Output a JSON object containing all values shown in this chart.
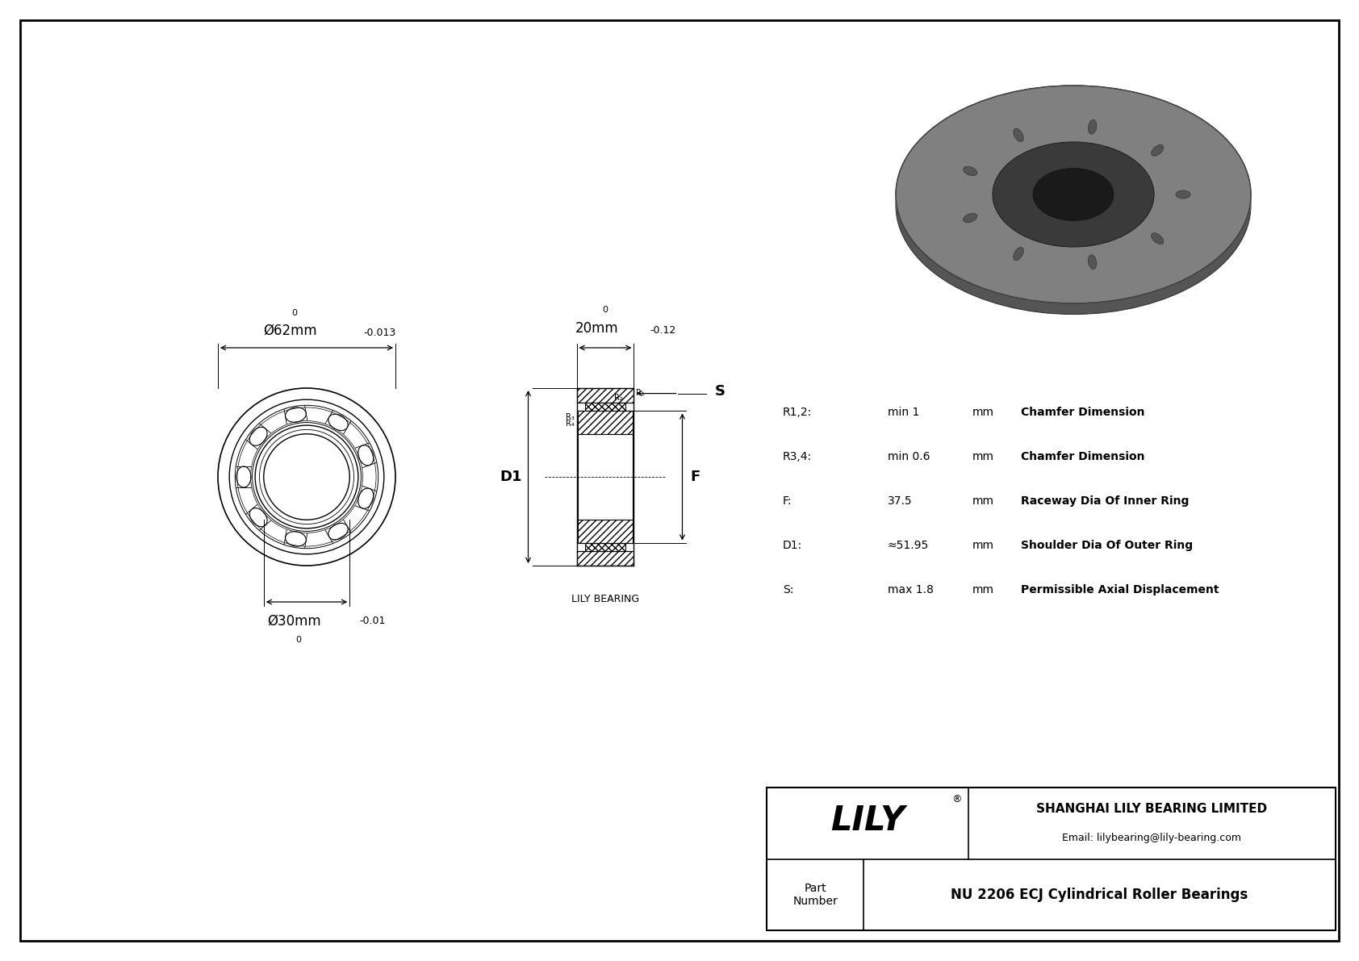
{
  "bg_color": "#ffffff",
  "line_color": "#000000",
  "outer_dia_label": "Ø62mm",
  "outer_dia_upper": "0",
  "outer_dia_lower": "-0.013",
  "inner_dia_label": "Ø30mm",
  "inner_dia_upper": "0",
  "inner_dia_lower": "-0.01",
  "width_label": "20mm",
  "width_upper": "0",
  "width_lower": "-0.12",
  "r12_label": "R1,2:",
  "r12_val": "min 1",
  "r12_unit": "mm",
  "r12_desc": "Chamfer Dimension",
  "r34_label": "R3,4:",
  "r34_val": "min 0.6",
  "r34_unit": "mm",
  "r34_desc": "Chamfer Dimension",
  "F_label": "F:",
  "F_val": "37.5",
  "F_unit": "mm",
  "F_desc": "Raceway Dia Of Inner Ring",
  "D1_label": "D1:",
  "D1_val": "≈51.95",
  "D1_unit": "mm",
  "D1_desc": "Shoulder Dia Of Outer Ring",
  "S_label": "S:",
  "S_val": "max 1.8",
  "S_unit": "mm",
  "S_desc": "Permissible Axial Displacement",
  "company": "SHANGHAI LILY BEARING LIMITED",
  "email": "Email: lilybearing@lily-bearing.com",
  "part_number": "NU 2206 ECJ Cylindrical Roller Bearings",
  "lily_label": "LILY",
  "lily_bearing_label": "LILY BEARING",
  "part_label": "Part\nNumber"
}
